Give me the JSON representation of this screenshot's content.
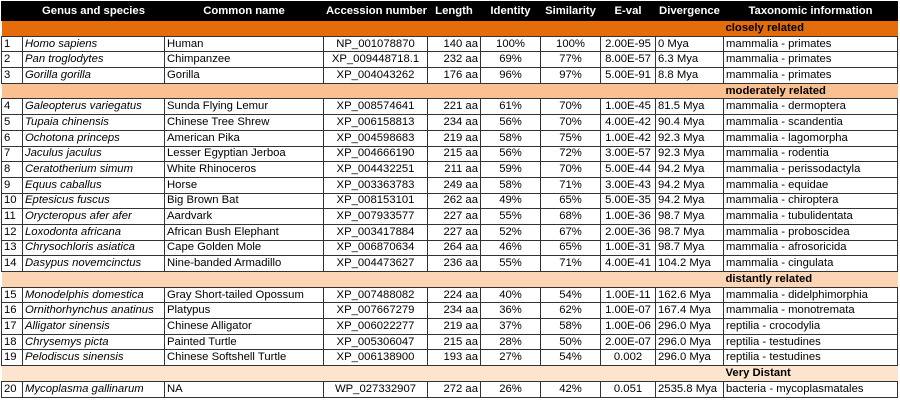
{
  "columns": [
    "",
    "Genus and species",
    "Common name",
    "Accession number",
    "Length",
    "Identity",
    "Similarity",
    "E-val",
    "Divergence",
    "Taxonomic information"
  ],
  "groups": [
    {
      "label": "closely related",
      "color": "#E46C0A",
      "rows": [
        [
          "1",
          "Homo sapiens",
          "Human",
          "NP_001078870",
          "140 aa",
          "100%",
          "100%",
          "2.00E-95",
          "0 Mya",
          "mammalia - primates"
        ],
        [
          "2",
          "Pan troglodytes",
          "Chimpanzee",
          "XP_009448718.1",
          "232 aa",
          "69%",
          "77%",
          "8.00E-57",
          "6.3 Mya",
          "mammalia - primates"
        ],
        [
          "3",
          "Gorilla gorilla",
          "Gorilla",
          "XP_004043262",
          "176 aa",
          "96%",
          "97%",
          "5.00E-91",
          "8.8 Mya",
          "mammalia - primates"
        ]
      ]
    },
    {
      "label": "moderately related",
      "color": "#FAC090",
      "rows": [
        [
          "4",
          "Galeopterus variegatus",
          "Sunda Flying Lemur",
          "XP_008574641",
          "221 aa",
          "61%",
          "70%",
          "1.00E-45",
          "81.5 Mya",
          "mammalia - dermoptera"
        ],
        [
          "5",
          "Tupaia chinensis",
          "Chinese Tree Shrew",
          "XP_006158813",
          "234 aa",
          "56%",
          "70%",
          "4.00E-42",
          "90.4 Mya",
          "mammalia - scandentia"
        ],
        [
          "6",
          "Ochotona princeps",
          "American Pika",
          "XP_004598683",
          "219 aa",
          "58%",
          "75%",
          "1.00E-42",
          "92.3 Mya",
          "mammalia - lagomorpha"
        ],
        [
          "7",
          "Jaculus jaculus",
          "Lesser Egyptian Jerboa",
          "XP_004666190",
          "215 aa",
          "56%",
          "72%",
          "3.00E-57",
          "92.3 Mya",
          "mammalia - rodentia"
        ],
        [
          "8",
          "Ceratotherium simum",
          "White Rhinoceros",
          "XP_004432251",
          "211 aa",
          "59%",
          "70%",
          "5.00E-44",
          "94.2 Mya",
          "mammalia - perissodactyla"
        ],
        [
          "9",
          "Equus caballus",
          "Horse",
          "XP_003363783",
          "249 aa",
          "58%",
          "71%",
          "3.00E-43",
          "94.2 Mya",
          "mammalia - equidae"
        ],
        [
          "10",
          "Eptesicus fuscus",
          "Big Brown Bat",
          "XP_008153101",
          "262 aa",
          "49%",
          "65%",
          "5.00E-35",
          "94.2 Mya",
          "mammalia - chiroptera"
        ],
        [
          "11",
          "Orycteropus afer afer",
          "Aardvark",
          "XP_007933577",
          "227 aa",
          "55%",
          "68%",
          "1.00E-36",
          "98.7 Mya",
          "mammalia - tubulidentata"
        ],
        [
          "12",
          "Loxodonta africana",
          "African Bush Elephant",
          "XP_003417884",
          "227 aa",
          "52%",
          "67%",
          "2.00E-36",
          "98.7 Mya",
          "mammalia - proboscidea"
        ],
        [
          "13",
          "Chrysochloris asiatica",
          "Cape Golden Mole",
          "XP_006870634",
          "264 aa",
          "46%",
          "65%",
          "1.00E-31",
          "98.7 Mya",
          "mammalia - afrosoricida"
        ],
        [
          "14",
          "Dasypus novemcinctus",
          "Nine-banded Armadillo",
          "XP_004473627",
          "236 aa",
          "55%",
          "71%",
          "4.00E-41",
          "104.2 Mya",
          "mammalia - cingulata"
        ]
      ]
    },
    {
      "label": "distantly related",
      "color": "#FCD5B4",
      "rows": [
        [
          "15",
          "Monodelphis domestica",
          "Gray Short-tailed Opossum",
          "XP_007488082",
          "224 aa",
          "40%",
          "54%",
          "1.00E-11",
          "162.6 Mya",
          "mammalia - didelphimorphia"
        ],
        [
          "16",
          "Ornithorhynchus anatinus",
          "Platypus",
          "XP_007667279",
          "234 aa",
          "36%",
          "62%",
          "1.00E-07",
          "167.4 Mya",
          "mammalia - monotremata"
        ],
        [
          "17",
          "Alligator sinensis",
          "Chinese Alligator",
          "XP_006022277",
          "219 aa",
          "37%",
          "58%",
          "1.00E-06",
          "296.0 Mya",
          "reptilia - crocodylia"
        ],
        [
          "18",
          "Chrysemys picta",
          "Painted Turtle",
          "XP_005306047",
          "215 aa",
          "28%",
          "50%",
          "2.00E-07",
          "296.0 Mya",
          "reptilia - testudines"
        ],
        [
          "19",
          "Pelodiscus sinensis",
          "Chinese Softshell Turtle",
          "XP_006138900",
          "193 aa",
          "27%",
          "54%",
          "0.002",
          "296.0 Mya",
          "reptilia - testudines"
        ]
      ]
    },
    {
      "label": "Very Distant",
      "color": "#FDE4CF",
      "rows": [
        [
          "20",
          "Mycoplasma gallinarum",
          "NA",
          "WP_027332907",
          "272 aa",
          "26%",
          "42%",
          "0.051",
          "2535.8 Mya",
          "bacteria - mycoplasmatales"
        ]
      ]
    }
  ]
}
